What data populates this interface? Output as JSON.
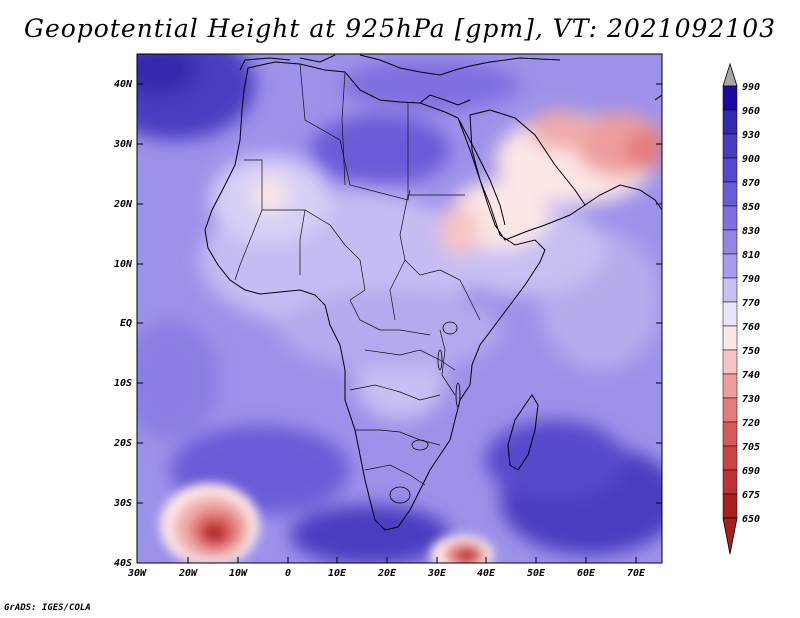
{
  "title": "Geopotential Height at 925hPa [gpm], VT: 2021092103",
  "footer": "GrADS: IGES/COLA",
  "map": {
    "variable": "Geopotential Height",
    "level": "925hPa",
    "units": "gpm",
    "valid_time": "2021092103",
    "lat_labels": [
      "40N",
      "30N",
      "20N",
      "10N",
      "EQ",
      "10S",
      "20S",
      "30S",
      "40S"
    ],
    "lon_labels": [
      "30W",
      "20W",
      "10W",
      "0",
      "10E",
      "20E",
      "30E",
      "40E",
      "50E",
      "60E",
      "70E"
    ]
  },
  "colorbar": {
    "levels": [
      "990",
      "960",
      "930",
      "900",
      "870",
      "850",
      "830",
      "810",
      "790",
      "770",
      "760",
      "750",
      "740",
      "730",
      "720",
      "705",
      "690",
      "675",
      "650"
    ],
    "colors": {
      "c990": "#a6a6a6",
      "c960": "#1c0aa0",
      "c930": "#3429ad",
      "c900": "#4a3cc0",
      "c870": "#5648cc",
      "c850": "#6a5cd8",
      "c830": "#7e70e0",
      "c810": "#9386e6",
      "c790": "#a89cec",
      "c770": "#c8c0f2",
      "c760": "#e8e4fa",
      "c750": "#fce6e6",
      "c740": "#f6c4c4",
      "c730": "#ee9e9e",
      "c720": "#e47c7c",
      "c705": "#d65a5a",
      "c690": "#ca4444",
      "c675": "#bc3232",
      "c650": "#a62020",
      "land_line": "#000000"
    }
  }
}
